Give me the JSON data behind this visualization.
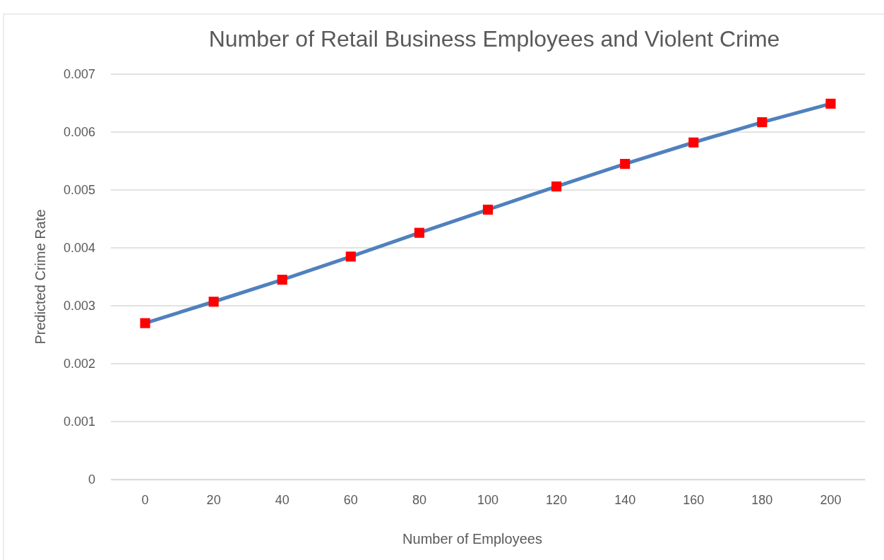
{
  "chart_data": {
    "type": "line",
    "title": "Number of Retail Business Employees and Violent Crime",
    "xlabel": "Number of Employees",
    "ylabel": "Predicted Crime Rate",
    "categories": [
      "0",
      "20",
      "40",
      "60",
      "80",
      "100",
      "120",
      "140",
      "160",
      "180",
      "200"
    ],
    "series": [
      {
        "color": "#4f81bd",
        "colors": [
          "#ff0000",
          "#ff0000",
          "#ff0000",
          "#ff0000",
          "#ff0000",
          "#ff0000",
          "#ff0000",
          "#ff0000",
          "#ff0000",
          "#ff0000",
          "#ff0000"
        ],
        "values": [
          0.0027,
          0.00307,
          0.00345,
          0.00385,
          0.00426,
          0.00466,
          0.00506,
          0.00545,
          0.00582,
          0.00617,
          0.00649
        ]
      }
    ],
    "ylim": [
      0,
      0.007
    ],
    "yticks": [
      0,
      0.001,
      0.002,
      0.003,
      0.004,
      0.005,
      0.006,
      0.007
    ],
    "grid": "y",
    "marker": "square",
    "line_style": "solid"
  }
}
